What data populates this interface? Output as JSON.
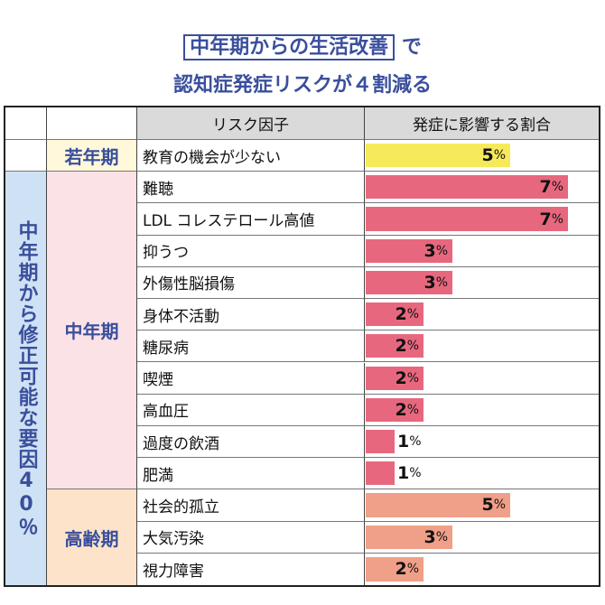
{
  "title": {
    "boxed": "中年期からの生活改善",
    "suffix": "で",
    "line2": "認知症発症リスクが４割減る"
  },
  "chart_data": {
    "type": "bar",
    "title": "中年期からの生活改善で認知症発症リスクが４割減る",
    "headers": {
      "factor": "リスク因子",
      "value": "発症に影響する割合"
    },
    "unit": "%",
    "modifiable_label": "中年期から修正可能な要因40％",
    "groups": [
      {
        "name": "若年期",
        "color": "#f6ea5a",
        "bg": "#fff8da",
        "items": [
          {
            "factor": "教育の機会が少ない",
            "value": 5
          }
        ]
      },
      {
        "name": "中年期",
        "color": "#e7687e",
        "bg": "#fbe2e7",
        "items": [
          {
            "factor": "難聴",
            "value": 7
          },
          {
            "factor": "LDL コレステロール高値",
            "value": 7
          },
          {
            "factor": "抑うつ",
            "value": 3
          },
          {
            "factor": "外傷性脳損傷",
            "value": 3
          },
          {
            "factor": "身体不活動",
            "value": 2
          },
          {
            "factor": "糖尿病",
            "value": 2
          },
          {
            "factor": "喫煙",
            "value": 2
          },
          {
            "factor": "高血圧",
            "value": 2
          },
          {
            "factor": "過度の飲酒",
            "value": 1
          },
          {
            "factor": "肥満",
            "value": 1
          }
        ]
      },
      {
        "name": "高齢期",
        "color": "#f09f88",
        "bg": "#fde3ca",
        "items": [
          {
            "factor": "社会的孤立",
            "value": 5
          },
          {
            "factor": "大気汚染",
            "value": 3
          },
          {
            "factor": "視力障害",
            "value": 2
          }
        ]
      }
    ]
  }
}
